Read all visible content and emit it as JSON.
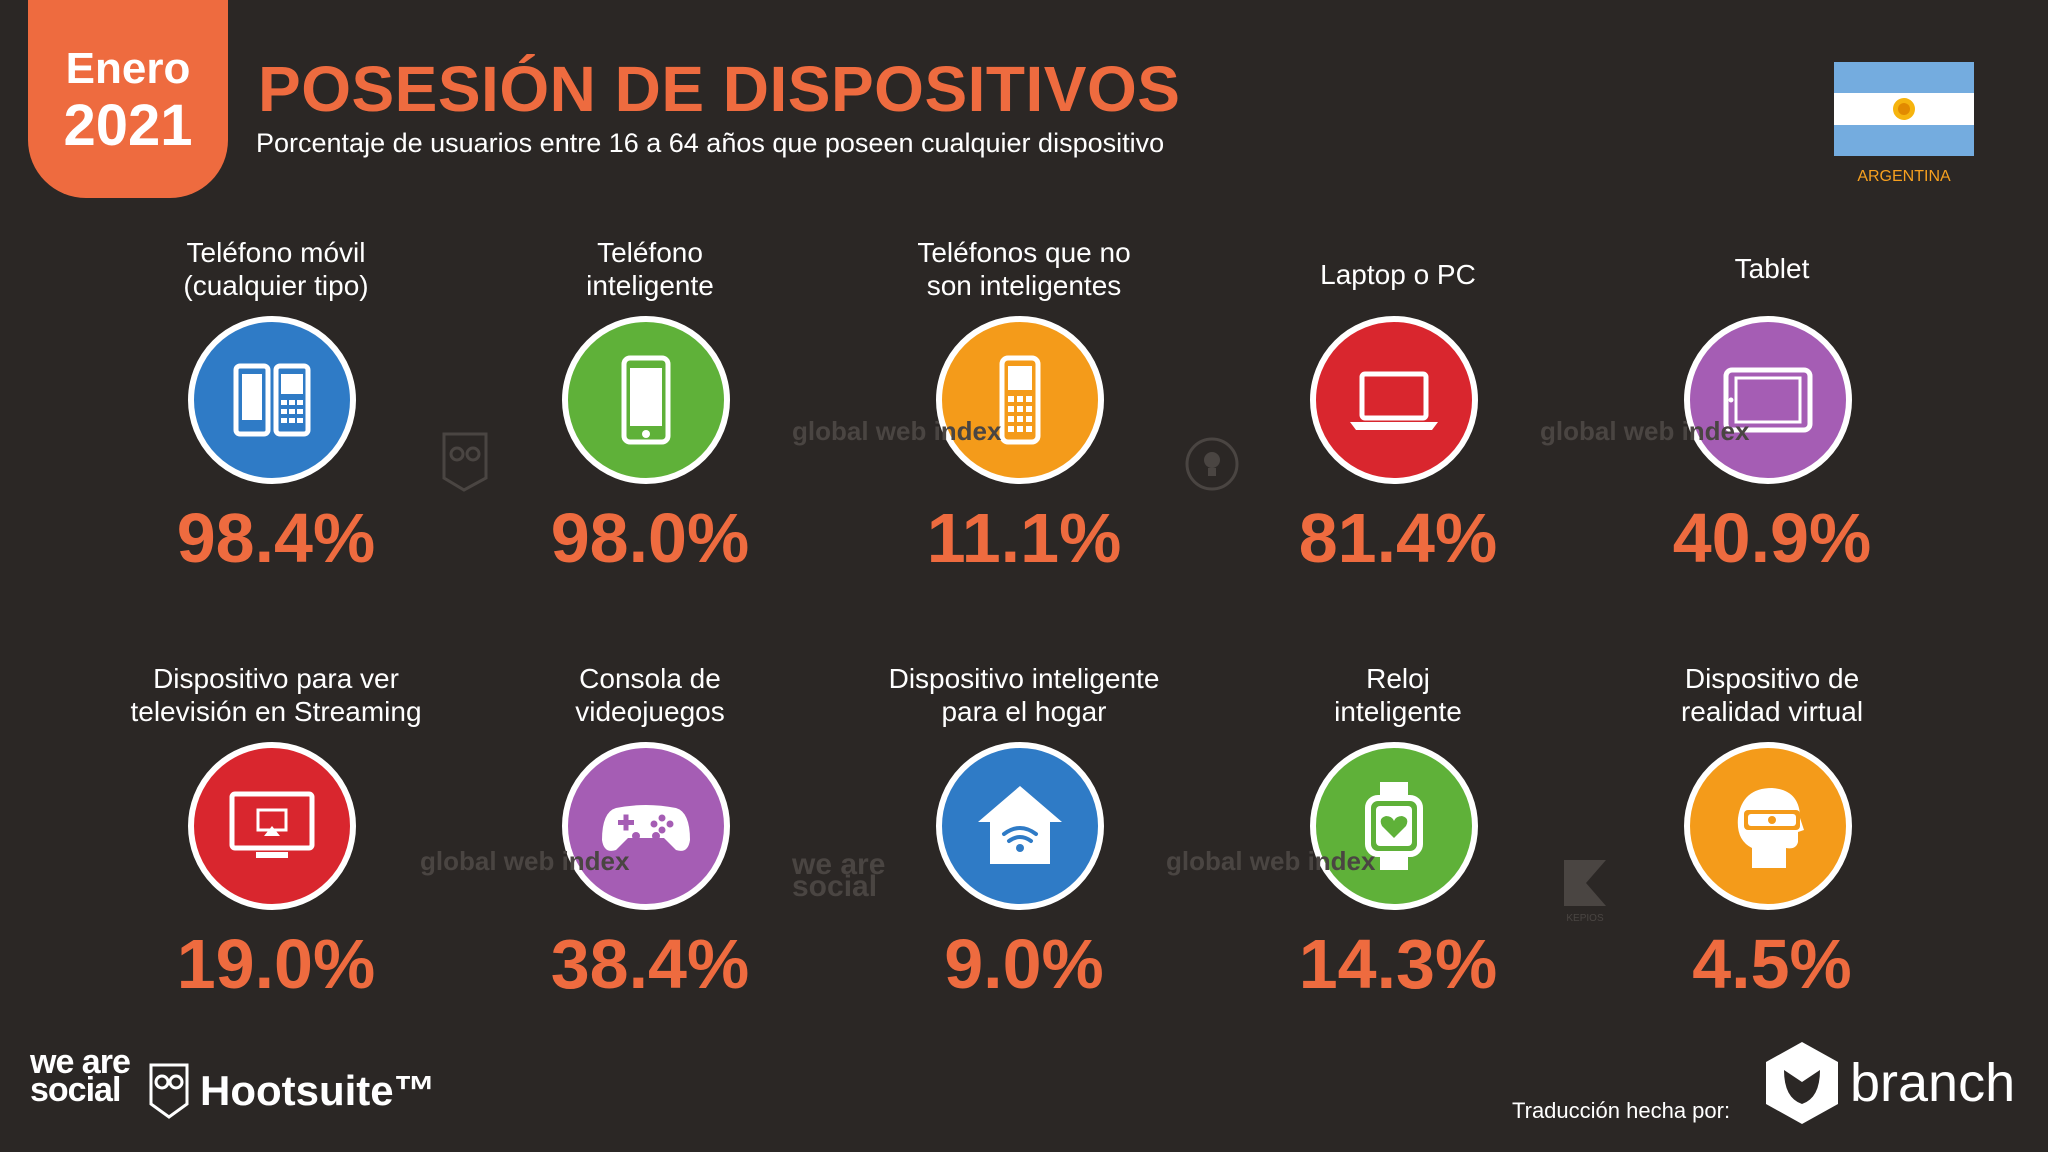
{
  "header": {
    "badge_month": "Enero",
    "badge_year": "2021",
    "title": "POSESIÓN DE DISPOSITIVOS",
    "subtitle": "Porcentaje de usuarios entre 16 a 64 años que poseen cualquier dispositivo",
    "country": "ARGENTINA"
  },
  "colors": {
    "background": "#2b2725",
    "accent": "#ee6b3f",
    "blue": "#2f7bc6",
    "green": "#5fb139",
    "orange": "#f49b1a",
    "red": "#d9262e",
    "purple": "#a55db4"
  },
  "devices": [
    {
      "label_1": "Teléfono móvil",
      "label_2": "(cualquier tipo)",
      "value": "98.4%",
      "icon": "mobile-phones-icon",
      "color": "blue"
    },
    {
      "label_1": "Teléfono",
      "label_2": "inteligente",
      "value": "98.0%",
      "icon": "smartphone-icon",
      "color": "green"
    },
    {
      "label_1": "Teléfonos que no",
      "label_2": "son inteligentes",
      "value": "11.1%",
      "icon": "feature-phone-icon",
      "color": "orange"
    },
    {
      "label_1": "Laptop o PC",
      "label_2": "",
      "value": "81.4%",
      "icon": "laptop-icon",
      "color": "red"
    },
    {
      "label_1": "Tablet",
      "label_2": "",
      "value": "40.9%",
      "icon": "tablet-icon",
      "color": "purple"
    },
    {
      "label_1": "Dispositivo para ver",
      "label_2": "televisión en Streaming",
      "value": "19.0%",
      "icon": "streaming-tv-icon",
      "color": "red"
    },
    {
      "label_1": "Consola de",
      "label_2": "videojuegos",
      "value": "38.4%",
      "icon": "gamepad-icon",
      "color": "purple"
    },
    {
      "label_1": "Dispositivo inteligente",
      "label_2": "para el hogar",
      "value": "9.0%",
      "icon": "smart-home-icon",
      "color": "blue"
    },
    {
      "label_1": "Reloj",
      "label_2": "inteligente",
      "value": "14.3%",
      "icon": "smartwatch-icon",
      "color": "green"
    },
    {
      "label_1": "Dispositivo de",
      "label_2": "realidad virtual",
      "value": "4.5%",
      "icon": "vr-headset-icon",
      "color": "orange"
    }
  ],
  "watermarks": {
    "gwi": "global web index",
    "was": "we are social",
    "kepios": "KEPIOS"
  },
  "footer": {
    "logo_was": "we are social",
    "logo_hootsuite": "Hootsuite™",
    "credit": "Traducción hecha por:",
    "logo_branch": "branch"
  }
}
